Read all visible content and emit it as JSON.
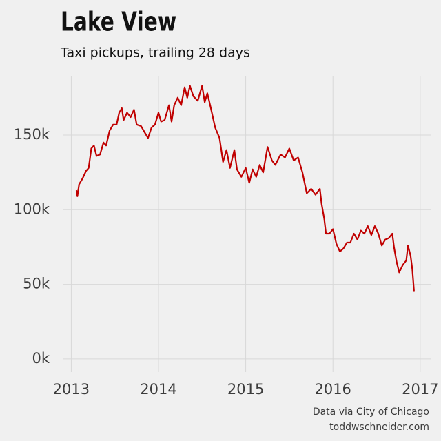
{
  "chart_data": {
    "type": "line",
    "title": "Lake View",
    "subtitle": "Taxi pickups, trailing 28 days",
    "caption": [
      "Data via City of Chicago",
      "toddwschneider.com"
    ],
    "xlim": [
      2012.91,
      2017.12
    ],
    "xticks": [
      2013,
      2014,
      2015,
      2016,
      2017
    ],
    "ylim": [
      -8800,
      189700
    ],
    "yticks": [
      {
        "value": 0,
        "label": "0k"
      },
      {
        "value": 50000,
        "label": "50k"
      },
      {
        "value": 100000,
        "label": "100k"
      },
      {
        "value": 150000,
        "label": "150k"
      }
    ],
    "grid": true,
    "series": [
      {
        "color": "#c00000",
        "x": [
          2013.06,
          2013.07,
          2013.09,
          2013.13,
          2013.17,
          2013.2,
          2013.23,
          2013.26,
          2013.29,
          2013.33,
          2013.37,
          2013.4,
          2013.44,
          2013.48,
          2013.52,
          2013.55,
          2013.58,
          2013.6,
          2013.64,
          2013.68,
          2013.72,
          2013.75,
          2013.8,
          2013.84,
          2013.88,
          2013.92,
          2013.96,
          2014.0,
          2014.03,
          2014.07,
          2014.12,
          2014.15,
          2014.18,
          2014.22,
          2014.26,
          2014.3,
          2014.33,
          2014.36,
          2014.4,
          2014.45,
          2014.5,
          2014.53,
          2014.56,
          2014.6,
          2014.65,
          2014.7,
          2014.74,
          2014.78,
          2014.82,
          2014.87,
          2014.9,
          2014.95,
          2015.0,
          2015.04,
          2015.08,
          2015.12,
          2015.16,
          2015.2,
          2015.25,
          2015.3,
          2015.34,
          2015.4,
          2015.45,
          2015.5,
          2015.55,
          2015.6,
          2015.65,
          2015.7,
          2015.75,
          2015.8,
          2015.85,
          2015.87,
          2015.9,
          2015.92,
          2015.96,
          2016.0,
          2016.04,
          2016.08,
          2016.12,
          2016.16,
          2016.2,
          2016.24,
          2016.28,
          2016.32,
          2016.36,
          2016.4,
          2016.44,
          2016.48,
          2016.52,
          2016.56,
          2016.6,
          2016.64,
          2016.68,
          2016.7,
          2016.73,
          2016.76,
          2016.8,
          2016.84,
          2016.86,
          2016.89,
          2016.91,
          2016.93
        ],
        "values": [
          113000,
          109000,
          117000,
          121000,
          126000,
          128000,
          141000,
          143000,
          136000,
          137000,
          145000,
          143000,
          153000,
          157000,
          157000,
          165000,
          168000,
          160000,
          165000,
          162000,
          167000,
          157000,
          156000,
          152000,
          148000,
          155000,
          157000,
          165000,
          159000,
          160000,
          170000,
          159000,
          170000,
          175000,
          170000,
          182000,
          175000,
          183000,
          176000,
          173000,
          183000,
          172000,
          178000,
          168000,
          155000,
          148000,
          132000,
          140000,
          128000,
          140000,
          127000,
          122000,
          128000,
          118000,
          127000,
          122000,
          130000,
          125000,
          142000,
          133000,
          130000,
          137000,
          135000,
          141000,
          133000,
          135000,
          125000,
          111000,
          114000,
          110000,
          114000,
          104000,
          94000,
          84000,
          84000,
          87000,
          77000,
          72000,
          74000,
          78000,
          78000,
          84000,
          80000,
          86000,
          84000,
          89000,
          83000,
          89000,
          84000,
          76000,
          80000,
          81000,
          84000,
          75000,
          65000,
          58000,
          63000,
          66000,
          76000,
          69000,
          60000,
          45000
        ]
      }
    ]
  }
}
